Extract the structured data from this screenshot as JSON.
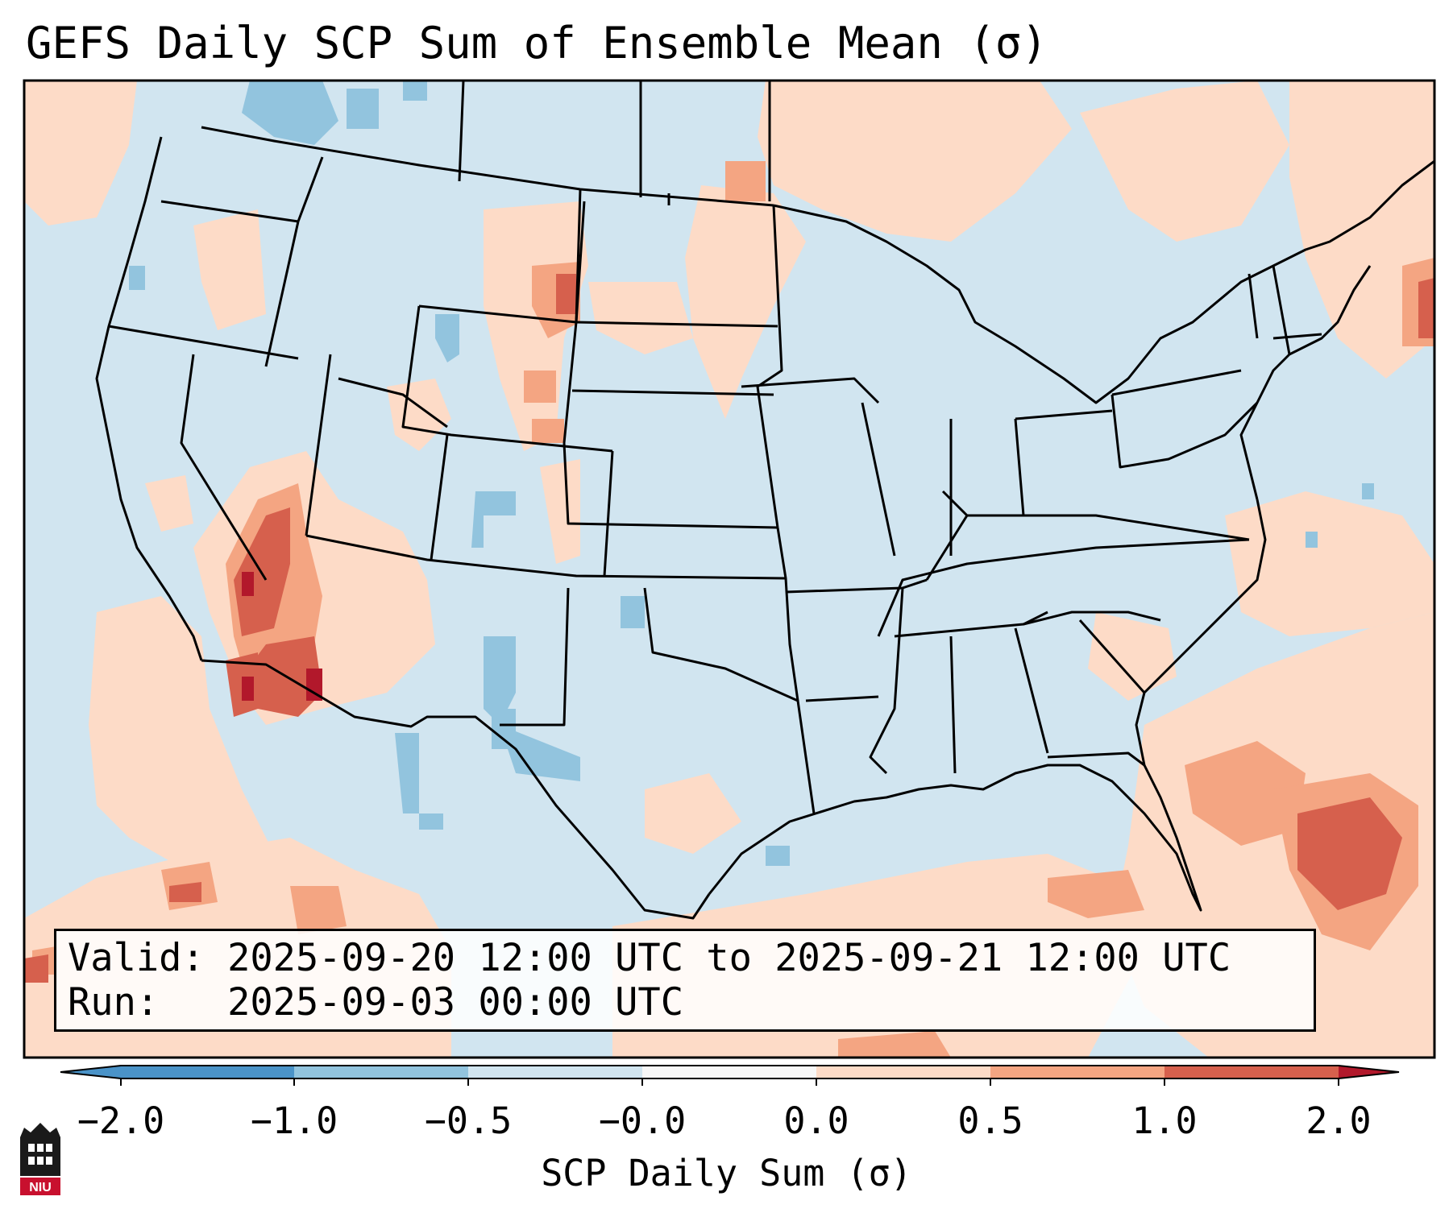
{
  "title": "GEFS Daily SCP Sum of Ensemble Mean (σ)",
  "info": {
    "valid_label": "Valid:",
    "valid_value": "2025-09-20 12:00 UTC to 2025-09-21 12:00 UTC",
    "run_label": "Run:",
    "run_value": "2025-09-03 00:00 UTC"
  },
  "colorbar": {
    "label": "SCP Daily Sum (σ)",
    "ticks": [
      "−2.0",
      "−1.0",
      "−0.5",
      "−0.0",
      "0.0",
      "0.5",
      "1.0",
      "2.0"
    ],
    "colors": {
      "lt_-1": "#4a93c8",
      "-1_-0.5": "#92c4de",
      "-0.5_0": "#d1e5f0",
      "0_0.5": "#fddbc7",
      "0.5_1": "#f4a582",
      "1_2": "#d6604d",
      "gt_2": "#b2182b"
    }
  },
  "logo": {
    "text": "NIU",
    "color": "#c8102e"
  }
}
